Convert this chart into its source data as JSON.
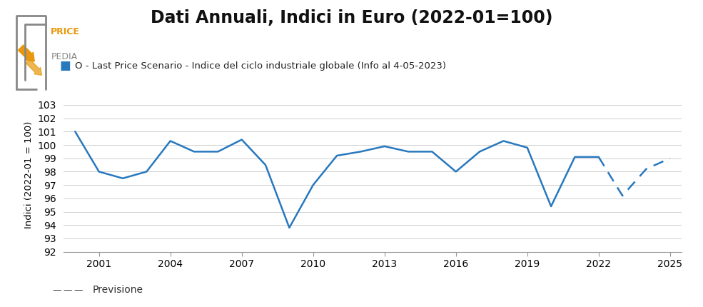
{
  "title": "Dati Annuali, Indici in Euro (2022-01=100)",
  "ylabel": "Indici (2022-01 = 100)",
  "legend_label": "O - Last Price Scenario - Indice del ciclo industriale globale (Info al 4-05-2023)",
  "preview_label": "Previsione",
  "line_color": "#2878be",
  "solid_years": [
    2000,
    2001,
    2002,
    2003,
    2004,
    2005,
    2006,
    2007,
    2008,
    2009,
    2010,
    2011,
    2012,
    2013,
    2014,
    2015,
    2016,
    2017,
    2018,
    2019,
    2020,
    2021,
    2022
  ],
  "solid_values": [
    101.0,
    98.0,
    97.5,
    98.0,
    100.3,
    99.5,
    99.5,
    100.4,
    98.5,
    93.8,
    97.0,
    99.2,
    99.5,
    99.9,
    99.5,
    99.5,
    98.0,
    99.5,
    100.3,
    99.8,
    95.4,
    99.1,
    99.1
  ],
  "dashed_years": [
    2022,
    2023,
    2024,
    2025
  ],
  "dashed_values": [
    99.1,
    96.2,
    98.2,
    99.0
  ],
  "ylim": [
    92,
    103.5
  ],
  "yticks": [
    92,
    93,
    94,
    95,
    96,
    97,
    98,
    99,
    100,
    101,
    102,
    103
  ],
  "xlim": [
    1999.5,
    2025.5
  ],
  "xticks": [
    2001,
    2004,
    2007,
    2010,
    2013,
    2016,
    2019,
    2022,
    2025
  ],
  "background_color": "#ffffff",
  "logo_orange": "#e8980a",
  "logo_gray": "#888888",
  "logo_gray_dark": "#555555"
}
